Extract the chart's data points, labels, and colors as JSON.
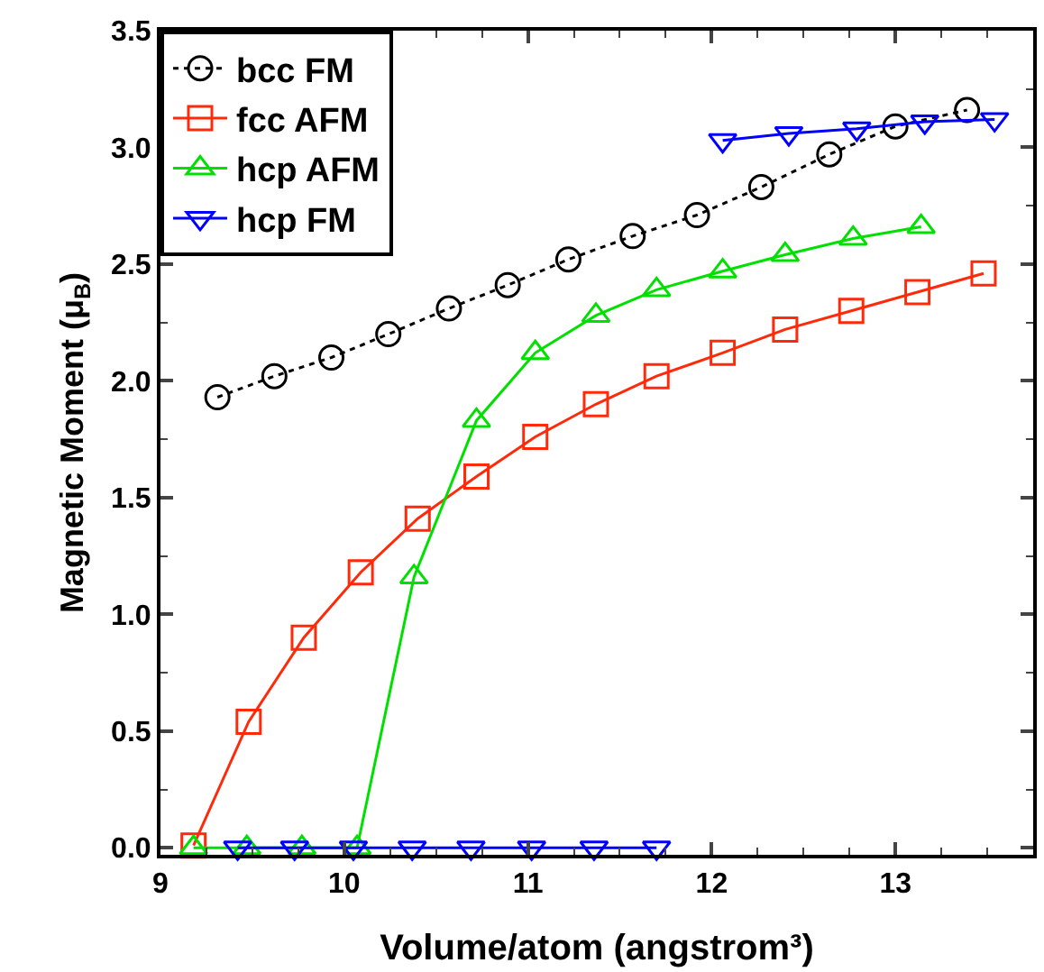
{
  "chart_data": {
    "type": "line",
    "xlabel": "Volume/atom (angstrom³)",
    "ylabel": "Magnetic Moment (μ$_{B}$)",
    "xlim": [
      9,
      13.75
    ],
    "xticks": [
      9,
      10,
      11,
      12,
      13
    ],
    "ylim": [
      -0.03,
      3.5
    ],
    "yticks": [
      {
        "value": 0,
        "label": "0.0"
      },
      {
        "value": 0.5,
        "label": "0.5"
      },
      {
        "value": 1,
        "label": "1.0"
      },
      {
        "value": 1.5,
        "label": "1.5"
      },
      {
        "value": 2,
        "label": "2.0"
      },
      {
        "value": 2.5,
        "label": "2.5"
      },
      {
        "value": 3,
        "label": "3.0"
      },
      {
        "value": 3.5,
        "label": "3.5"
      }
    ],
    "legend": "top left",
    "series": [
      {
        "name": "bcc FM",
        "color": "#000000",
        "marker": "circle",
        "line_style": "dotted",
        "x": [
          9.31,
          9.62,
          9.93,
          10.24,
          10.57,
          10.89,
          11.22,
          11.57,
          11.92,
          12.27,
          12.64,
          13.0,
          13.39
        ],
        "values": [
          1.93,
          2.02,
          2.1,
          2.2,
          2.31,
          2.41,
          2.52,
          2.62,
          2.71,
          2.83,
          2.97,
          3.09,
          3.16
        ]
      },
      {
        "name": "fcc AFM",
        "color": "#ff2a0a",
        "marker": "square",
        "line_style": "solid",
        "x": [
          9.18,
          9.48,
          9.78,
          10.09,
          10.4,
          10.72,
          11.04,
          11.37,
          11.7,
          12.06,
          12.4,
          12.76,
          13.12,
          13.48
        ],
        "values": [
          0.01,
          0.54,
          0.9,
          1.18,
          1.41,
          1.59,
          1.76,
          1.9,
          2.02,
          2.12,
          2.22,
          2.3,
          2.38,
          2.46
        ]
      },
      {
        "name": "hcp AFM",
        "color": "#00e000",
        "marker": "triangle",
        "line_style": "solid",
        "x": [
          9.18,
          9.47,
          9.77,
          10.07,
          10.38,
          10.72,
          11.04,
          11.37,
          11.7,
          12.06,
          12.4,
          12.77,
          13.14
        ],
        "values": [
          0,
          0,
          0,
          0,
          1.16,
          1.83,
          2.12,
          2.28,
          2.39,
          2.47,
          2.54,
          2.61,
          2.66
        ]
      },
      {
        "name": "hcp FM",
        "color": "#0000ff",
        "marker": "triangle-down",
        "line_style": "solid",
        "x": [
          9.42,
          9.73,
          10.05,
          10.37,
          10.69,
          11.02,
          11.36,
          11.7,
          11.88,
          12.06,
          12.42,
          12.79,
          13.16,
          13.54
        ],
        "values": [
          0,
          0,
          0,
          0,
          0,
          0,
          0,
          0,
          null,
          3.03,
          3.06,
          3.08,
          3.11,
          3.12
        ]
      }
    ]
  }
}
